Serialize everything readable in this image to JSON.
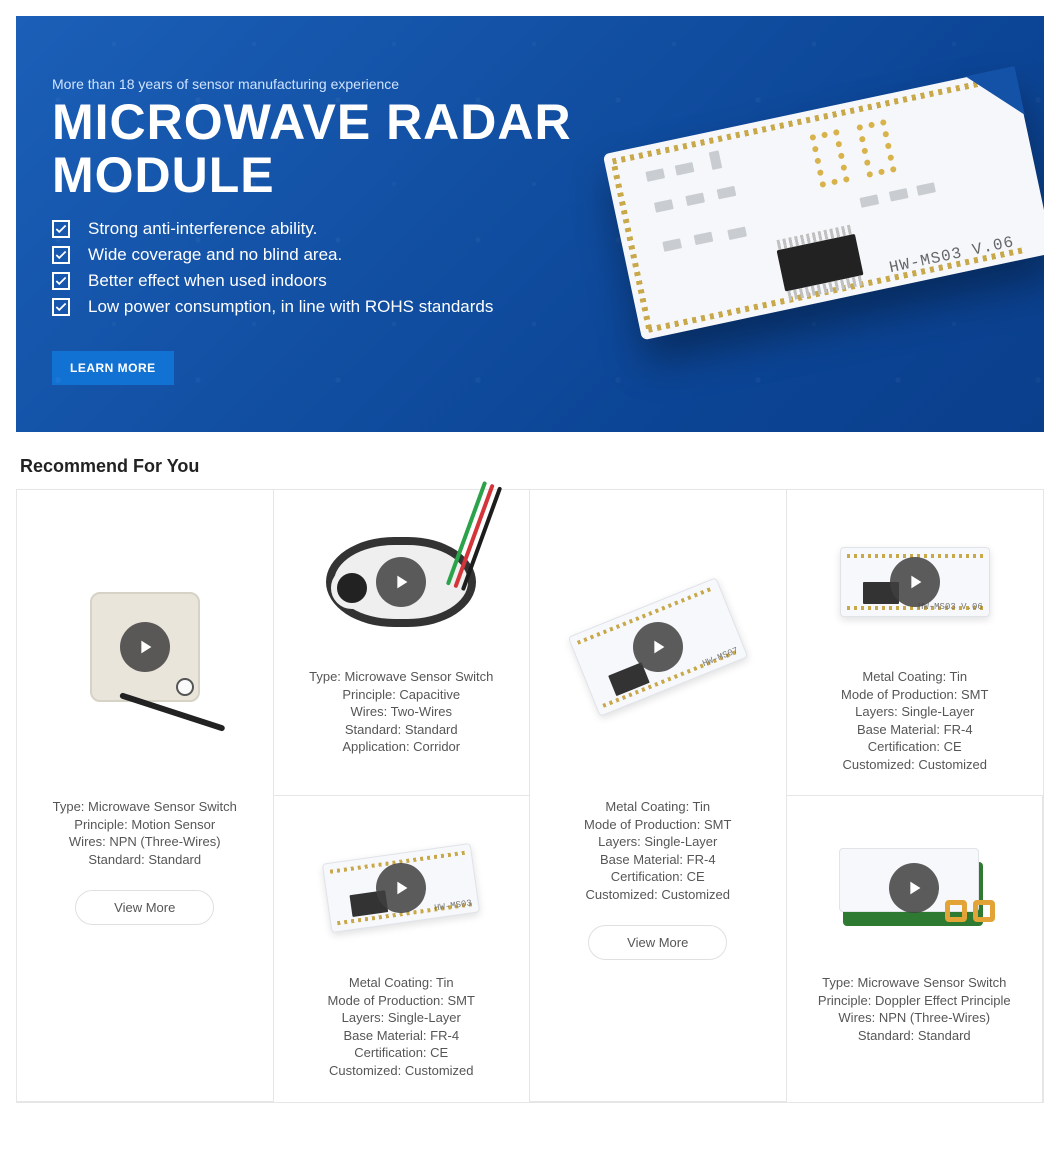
{
  "hero": {
    "subline": "More than 18 years of sensor manufacturing experience",
    "title_line1": "MICROWAVE RADAR",
    "title_line2": "MODULE",
    "bullets": [
      "Strong anti-interference ability.",
      "Wide coverage and no blind area.",
      "Better effect when used indoors",
      "Low power consumption, in line with ROHS standards"
    ],
    "cta_label": "LEARN MORE",
    "pcb_model": "HW-MS03",
    "pcb_rev": "V.06",
    "colors": {
      "hero_bg_from": "#1b5fb8",
      "hero_bg_to": "#0a3f8c",
      "cta_bg": "#1272d4",
      "text_white": "#ffffff"
    }
  },
  "section": {
    "title": "Recommend For You",
    "view_more_label": "View More"
  },
  "products": [
    {
      "id": "card-1",
      "attrs": [
        "Type: Microwave Sensor Switch",
        "Principle: Motion Sensor",
        "Wires: NPN (Three-Wires)",
        "Standard: Standard"
      ],
      "has_view_more": true
    },
    {
      "id": "card-2",
      "attrs": [
        "Type: Microwave Sensor Switch",
        "Principle: Capacitive",
        "Wires: Two-Wires",
        "Standard: Standard",
        "Application: Corridor"
      ],
      "has_view_more": false
    },
    {
      "id": "card-3",
      "attrs": [
        "Metal Coating: Tin",
        "Mode of Production: SMT",
        "Layers: Single-Layer",
        "Base Material: FR-4",
        "Certification: CE",
        "Customized: Customized"
      ],
      "has_view_more": true
    },
    {
      "id": "card-4",
      "attrs": [
        "Metal Coating: Tin",
        "Mode of Production: SMT",
        "Layers: Single-Layer",
        "Base Material: FR-4",
        "Certification: CE",
        "Customized: Customized"
      ],
      "has_view_more": false
    },
    {
      "id": "card-5",
      "attrs": [
        "Metal Coating: Tin",
        "Mode of Production: SMT",
        "Layers: Single-Layer",
        "Base Material: FR-4",
        "Certification: CE",
        "Customized: Customized"
      ],
      "has_view_more": false
    },
    {
      "id": "card-6",
      "attrs": [
        "Type: Microwave Sensor Switch",
        "Principle: Doppler Effect Principle",
        "Wires: NPN (Three-Wires)",
        "Standard: Standard"
      ],
      "has_view_more": false
    }
  ],
  "wire_colors": [
    "#2aa34a",
    "#d4353a",
    "#1d1d1d"
  ]
}
